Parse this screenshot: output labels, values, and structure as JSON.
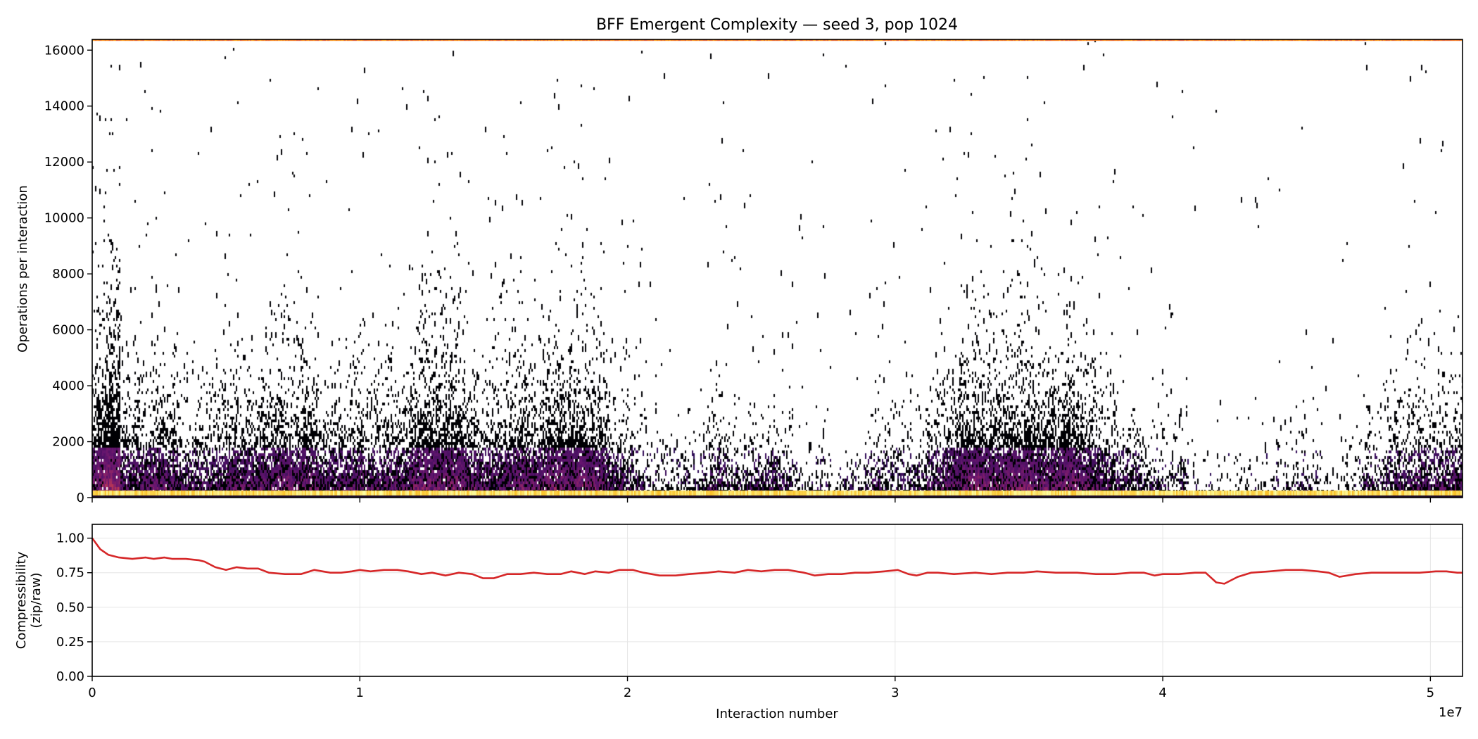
{
  "chart_data": [
    {
      "type": "heatmap",
      "title": "BFF Emergent Complexity — seed 3, pop 1024",
      "xlabel": "",
      "ylabel": "Operations per interaction",
      "xlim": [
        0,
        51200000
      ],
      "ylim": [
        0,
        16384
      ],
      "colormap": "inferno",
      "background": "#ffffff",
      "yticks": [
        0,
        2000,
        4000,
        6000,
        8000,
        10000,
        12000,
        14000,
        16000
      ],
      "ytick_labels": [
        "0",
        "2000",
        "4000",
        "6000",
        "8000",
        "10000",
        "12000",
        "14000",
        "16000"
      ],
      "xticks": [
        0,
        10000000,
        20000000,
        30000000,
        40000000,
        50000000
      ],
      "grid": false
    },
    {
      "type": "line",
      "xlabel": "Interaction number",
      "ylabel_lines": [
        "Compressibility",
        "(zip/raw)"
      ],
      "xlim": [
        0,
        51200000
      ],
      "ylim": [
        0,
        1.1
      ],
      "x_offset_text": "1e7",
      "xticks": [
        0,
        10000000,
        20000000,
        30000000,
        40000000,
        50000000
      ],
      "xtick_labels": [
        "0",
        "1",
        "2",
        "3",
        "4",
        "5"
      ],
      "yticks": [
        0,
        0.25,
        0.5,
        0.75,
        1.0
      ],
      "ytick_labels": [
        "0.00",
        "0.25",
        "0.50",
        "0.75",
        "1.00"
      ],
      "grid": true,
      "line_color": "#d62728",
      "x_millions": [
        0,
        0.3,
        0.6,
        1.0,
        1.5,
        2.0,
        2.3,
        2.7,
        3.0,
        3.5,
        4.0,
        4.2,
        4.6,
        5.0,
        5.4,
        5.8,
        6.2,
        6.6,
        7.2,
        7.8,
        8.3,
        8.9,
        9.3,
        9.7,
        10.0,
        10.4,
        10.9,
        11.4,
        11.8,
        12.3,
        12.7,
        13.2,
        13.7,
        14.2,
        14.6,
        15.0,
        15.5,
        16.0,
        16.5,
        17.0,
        17.5,
        17.9,
        18.4,
        18.8,
        19.3,
        19.7,
        20.2,
        20.6,
        21.2,
        21.8,
        22.3,
        23.0,
        23.4,
        24.0,
        24.5,
        25.0,
        25.5,
        26.0,
        26.6,
        27.0,
        27.5,
        28.0,
        28.5,
        29.0,
        29.6,
        30.1,
        30.5,
        30.8,
        31.2,
        31.6,
        32.2,
        33.0,
        33.6,
        34.2,
        34.8,
        35.3,
        36.0,
        36.8,
        37.5,
        38.2,
        38.8,
        39.3,
        39.7,
        40.0,
        40.6,
        41.2,
        41.6,
        42.0,
        42.3,
        42.8,
        43.3,
        44.0,
        44.6,
        45.2,
        45.8,
        46.2,
        46.6,
        47.2,
        47.8,
        48.3,
        49.0,
        49.6,
        50.2,
        50.6,
        51.0,
        51.2
      ],
      "y": [
        1.0,
        0.92,
        0.88,
        0.86,
        0.85,
        0.86,
        0.85,
        0.86,
        0.85,
        0.85,
        0.84,
        0.83,
        0.79,
        0.77,
        0.79,
        0.78,
        0.78,
        0.75,
        0.74,
        0.74,
        0.77,
        0.75,
        0.75,
        0.76,
        0.77,
        0.76,
        0.77,
        0.77,
        0.76,
        0.74,
        0.75,
        0.73,
        0.75,
        0.74,
        0.71,
        0.71,
        0.74,
        0.74,
        0.75,
        0.74,
        0.74,
        0.76,
        0.74,
        0.76,
        0.75,
        0.77,
        0.77,
        0.75,
        0.73,
        0.73,
        0.74,
        0.75,
        0.76,
        0.75,
        0.77,
        0.76,
        0.77,
        0.77,
        0.75,
        0.73,
        0.74,
        0.74,
        0.75,
        0.75,
        0.76,
        0.77,
        0.74,
        0.73,
        0.75,
        0.75,
        0.74,
        0.75,
        0.74,
        0.75,
        0.75,
        0.76,
        0.75,
        0.75,
        0.74,
        0.74,
        0.75,
        0.75,
        0.73,
        0.74,
        0.74,
        0.75,
        0.75,
        0.68,
        0.67,
        0.72,
        0.75,
        0.76,
        0.77,
        0.77,
        0.76,
        0.75,
        0.72,
        0.74,
        0.75,
        0.75,
        0.75,
        0.75,
        0.76,
        0.76,
        0.75,
        0.75
      ]
    }
  ]
}
